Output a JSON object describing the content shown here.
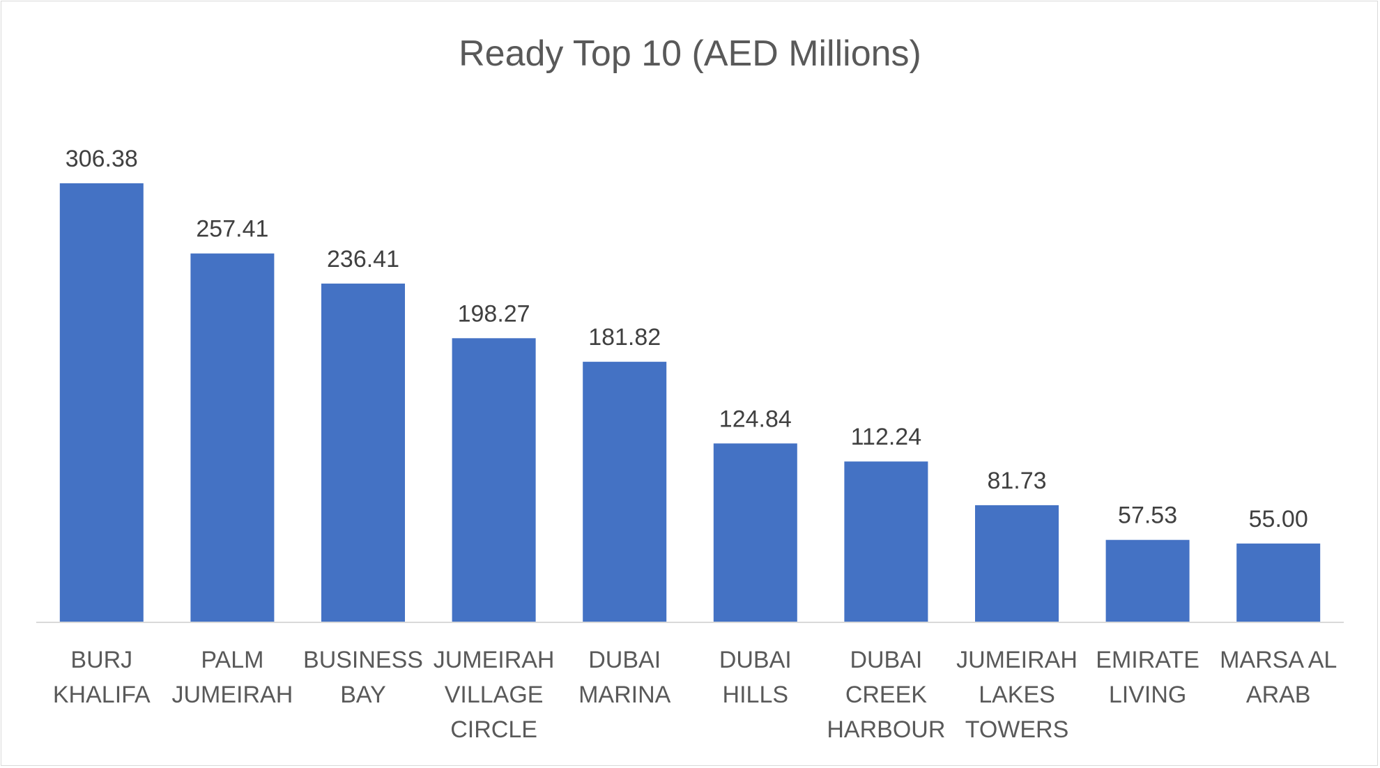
{
  "chart_data": {
    "type": "bar",
    "title": "Ready Top 10 (AED Millions)",
    "categories": [
      [
        "BURJ",
        "KHALIFA"
      ],
      [
        "PALM",
        "JUMEIRAH"
      ],
      [
        "BUSINESS",
        "BAY"
      ],
      [
        "JUMEIRAH",
        "VILLAGE",
        "CIRCLE"
      ],
      [
        "DUBAI",
        "MARINA"
      ],
      [
        "DUBAI",
        "HILLS"
      ],
      [
        "DUBAI",
        "CREEK",
        "HARBOUR"
      ],
      [
        "JUMEIRAH",
        "LAKES",
        "TOWERS"
      ],
      [
        "EMIRATE",
        "LIVING"
      ],
      [
        "MARSA AL",
        "ARAB"
      ]
    ],
    "values": [
      306.38,
      257.41,
      236.41,
      198.27,
      181.82,
      124.84,
      112.24,
      81.73,
      57.53,
      55.0
    ],
    "value_labels": [
      "306.38",
      "257.41",
      "236.41",
      "198.27",
      "181.82",
      "124.84",
      "112.24",
      "81.73",
      "57.53",
      "55.00"
    ],
    "xlabel": "",
    "ylabel": "",
    "ylim": [
      0,
      306.38
    ],
    "grid": false,
    "legend": "none",
    "colors": {
      "bar": "#4472c4",
      "axis": "#d9d9d9",
      "title": "#595959",
      "labels": "#404040"
    }
  }
}
